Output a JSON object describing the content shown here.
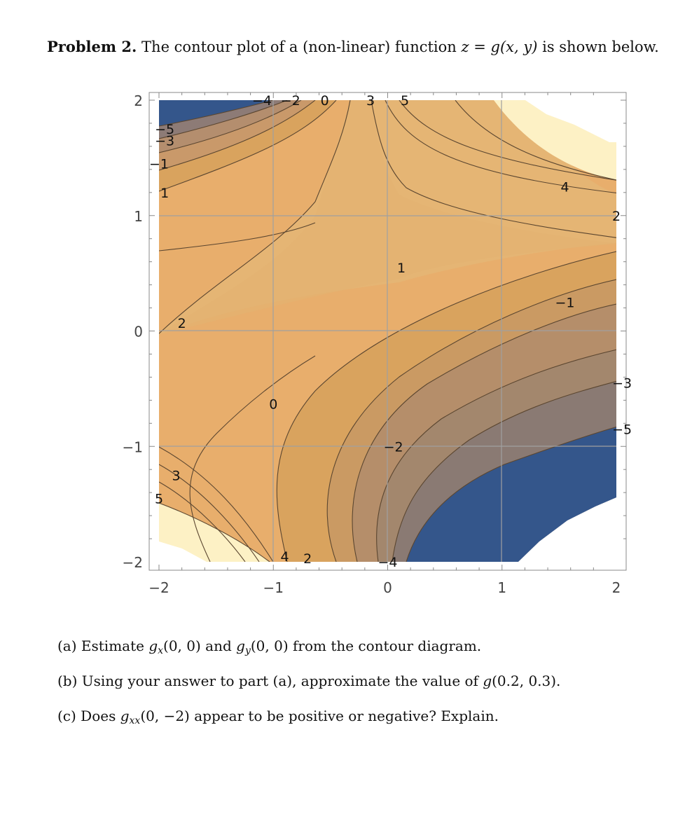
{
  "problem": {
    "label": "Problem 2.",
    "text_before": "The contour plot of a (non-linear) function",
    "equation": "z = g(x, y)",
    "text_after": "is shown below."
  },
  "chart_data": {
    "type": "contour",
    "xlim": [
      -2,
      2
    ],
    "ylim": [
      -2,
      2
    ],
    "x_ticks": [
      "−2",
      "−1",
      "0",
      "1",
      "2"
    ],
    "y_ticks": [
      "2",
      "1",
      "0",
      "−1",
      "−2"
    ],
    "grid": true,
    "contour_levels": [
      -5,
      -4,
      -3,
      -2,
      -1,
      0,
      1,
      2,
      3,
      4,
      5
    ],
    "contour_labels": [
      {
        "text": "−4",
        "x": -1.1,
        "y": 2.0
      },
      {
        "text": "−2",
        "x": -0.85,
        "y": 2.0
      },
      {
        "text": "0",
        "x": -0.55,
        "y": 2.0
      },
      {
        "text": "3",
        "x": -0.15,
        "y": 2.0
      },
      {
        "text": "5",
        "x": 0.15,
        "y": 2.0
      },
      {
        "text": "−5",
        "x": -1.95,
        "y": 1.75
      },
      {
        "text": "−3",
        "x": -1.95,
        "y": 1.65
      },
      {
        "text": "−1",
        "x": -2.0,
        "y": 1.45
      },
      {
        "text": "1",
        "x": -1.95,
        "y": 1.2
      },
      {
        "text": "4",
        "x": 1.55,
        "y": 1.25
      },
      {
        "text": "2",
        "x": 2.0,
        "y": 1.0
      },
      {
        "text": "1",
        "x": 0.12,
        "y": 0.55
      },
      {
        "text": "−1",
        "x": 1.55,
        "y": 0.25
      },
      {
        "text": "2",
        "x": -1.8,
        "y": 0.07
      },
      {
        "text": "−3",
        "x": 2.05,
        "y": -0.45
      },
      {
        "text": "0",
        "x": -1.0,
        "y": -0.63
      },
      {
        "text": "−5",
        "x": 2.05,
        "y": -0.85
      },
      {
        "text": "−2",
        "x": 0.05,
        "y": -1.0
      },
      {
        "text": "3",
        "x": -1.85,
        "y": -1.25
      },
      {
        "text": "5",
        "x": -2.0,
        "y": -1.45
      },
      {
        "text": "4",
        "x": -0.9,
        "y": -1.95
      },
      {
        "text": "2",
        "x": -0.7,
        "y": -1.97
      },
      {
        "text": "−4",
        "x": 0.0,
        "y": -2.0
      }
    ]
  },
  "questions": [
    {
      "label": "(a)",
      "text": "Estimate g_x(0, 0) and g_y(0, 0) from the contour diagram.",
      "p1": "Estimate",
      "f1": "g",
      "s1": "x",
      "a1": "(0, 0) and",
      "f2": "g",
      "s2": "y",
      "a2": "(0, 0) from the contour diagram."
    },
    {
      "label": "(b)",
      "text": "Using your answer to part (a), approximate the value of g(0.2, 0.3).",
      "p1": "Using your answer to part (a), approximate the value of",
      "f1": "g",
      "a1": "(0.2, 0.3)."
    },
    {
      "label": "(c)",
      "text": "Does g_xx(0, −2) appear to be positive or negative? Explain.",
      "p1": "Does",
      "f1": "g",
      "s1": "xx",
      "a1": "(0, −2) appear to be positive or negative? Explain."
    }
  ],
  "colors": {
    "deep_blue": "#34568b",
    "pale_cream": "#fdf1c5",
    "contour_line": "#5b4630"
  }
}
